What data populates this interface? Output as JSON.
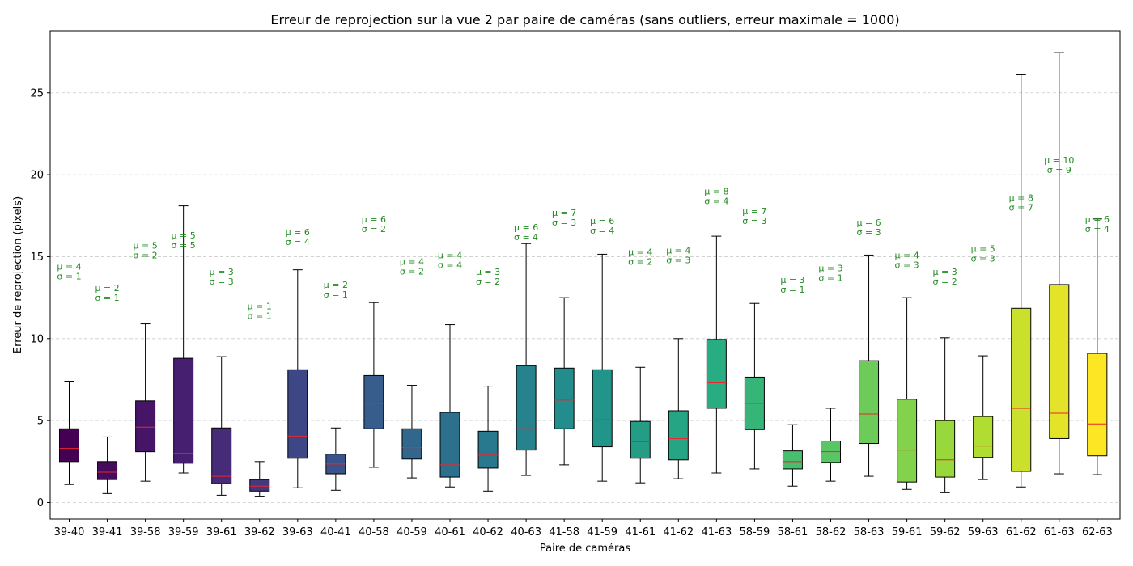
{
  "chart_data": {
    "type": "boxplot",
    "title": "Erreur de reprojection sur la vue 2 par paire de caméras (sans outliers, erreur maximale = 1000)",
    "xlabel": "Paire de caméras",
    "ylabel": "Erreur de reprojection (pixels)",
    "ylim": [
      -1.0,
      28.8
    ],
    "yticks": [
      0,
      5,
      10,
      15,
      20,
      25
    ],
    "grid": "y-dashed",
    "median_color": "#e8262b",
    "annotation_color": "#228b22",
    "colormap": "viridis",
    "categories": [
      "39-40",
      "39-41",
      "39-58",
      "39-59",
      "39-61",
      "39-62",
      "39-63",
      "40-41",
      "40-58",
      "40-59",
      "40-61",
      "40-62",
      "40-63",
      "41-58",
      "41-59",
      "41-61",
      "41-62",
      "41-63",
      "58-59",
      "58-61",
      "58-62",
      "58-63",
      "59-61",
      "59-62",
      "59-63",
      "61-62",
      "61-63",
      "62-63"
    ],
    "boxes": [
      {
        "whislo": 1.1,
        "q1": 2.5,
        "med": 3.3,
        "q3": 4.5,
        "whishi": 7.4,
        "mean_label": "μ = 4",
        "std_label": "σ = 1",
        "label_y": 14.1
      },
      {
        "whislo": 0.55,
        "q1": 1.4,
        "med": 1.85,
        "q3": 2.5,
        "whishi": 4.0,
        "mean_label": "μ = 2",
        "std_label": "σ = 1",
        "label_y": 12.8
      },
      {
        "whislo": 1.3,
        "q1": 3.1,
        "med": 4.6,
        "q3": 6.2,
        "whishi": 10.9,
        "mean_label": "μ = 5",
        "std_label": "σ = 2",
        "label_y": 15.4
      },
      {
        "whislo": 1.8,
        "q1": 2.4,
        "med": 3.0,
        "q3": 8.8,
        "whishi": 18.1,
        "mean_label": "μ = 5",
        "std_label": "σ = 5",
        "label_y": 16.0
      },
      {
        "whislo": 0.45,
        "q1": 1.15,
        "med": 1.6,
        "q3": 4.55,
        "whishi": 8.9,
        "mean_label": "μ = 3",
        "std_label": "σ = 3",
        "label_y": 13.8
      },
      {
        "whislo": 0.35,
        "q1": 0.7,
        "med": 1.0,
        "q3": 1.4,
        "whishi": 2.5,
        "mean_label": "μ = 1",
        "std_label": "σ = 1",
        "label_y": 11.7
      },
      {
        "whislo": 0.9,
        "q1": 2.7,
        "med": 4.05,
        "q3": 8.1,
        "whishi": 14.2,
        "mean_label": "μ = 6",
        "std_label": "σ = 4",
        "label_y": 16.2
      },
      {
        "whislo": 0.75,
        "q1": 1.75,
        "med": 2.35,
        "q3": 2.95,
        "whishi": 4.55,
        "mean_label": "μ = 2",
        "std_label": "σ = 1",
        "label_y": 13.0
      },
      {
        "whislo": 2.15,
        "q1": 4.5,
        "med": 6.05,
        "q3": 7.75,
        "whishi": 12.2,
        "mean_label": "μ = 6",
        "std_label": "σ = 2",
        "label_y": 17.0
      },
      {
        "whislo": 1.5,
        "q1": 2.65,
        "med": 3.35,
        "q3": 4.5,
        "whishi": 7.15,
        "mean_label": "μ = 4",
        "std_label": "σ = 2",
        "label_y": 14.4
      },
      {
        "whislo": 0.95,
        "q1": 1.55,
        "med": 2.3,
        "q3": 5.5,
        "whishi": 10.85,
        "mean_label": "μ = 4",
        "std_label": "σ = 4",
        "label_y": 14.8
      },
      {
        "whislo": 0.7,
        "q1": 2.1,
        "med": 2.9,
        "q3": 4.35,
        "whishi": 7.1,
        "mean_label": "μ = 3",
        "std_label": "σ = 2",
        "label_y": 13.8
      },
      {
        "whislo": 1.65,
        "q1": 3.2,
        "med": 4.5,
        "q3": 8.35,
        "whishi": 15.8,
        "mean_label": "μ = 6",
        "std_label": "σ = 4",
        "label_y": 16.5
      },
      {
        "whislo": 2.3,
        "q1": 4.5,
        "med": 6.25,
        "q3": 8.2,
        "whishi": 12.5,
        "mean_label": "μ = 7",
        "std_label": "σ = 3",
        "label_y": 17.4
      },
      {
        "whislo": 1.3,
        "q1": 3.4,
        "med": 5.05,
        "q3": 8.1,
        "whishi": 15.15,
        "mean_label": "μ = 6",
        "std_label": "σ = 4",
        "label_y": 16.9
      },
      {
        "whislo": 1.2,
        "q1": 2.7,
        "med": 3.7,
        "q3": 4.95,
        "whishi": 8.25,
        "mean_label": "μ = 4",
        "std_label": "σ = 2",
        "label_y": 15.0
      },
      {
        "whislo": 1.45,
        "q1": 2.6,
        "med": 3.9,
        "q3": 5.6,
        "whishi": 10.0,
        "mean_label": "μ = 4",
        "std_label": "σ = 3",
        "label_y": 15.1
      },
      {
        "whislo": 1.8,
        "q1": 5.75,
        "med": 7.3,
        "q3": 9.95,
        "whishi": 16.25,
        "mean_label": "μ = 8",
        "std_label": "σ = 4",
        "label_y": 18.7
      },
      {
        "whislo": 2.05,
        "q1": 4.45,
        "med": 6.05,
        "q3": 7.65,
        "whishi": 12.15,
        "mean_label": "μ = 7",
        "std_label": "σ = 3",
        "label_y": 17.5
      },
      {
        "whislo": 1.0,
        "q1": 2.05,
        "med": 2.5,
        "q3": 3.15,
        "whishi": 4.75,
        "mean_label": "μ = 3",
        "std_label": "σ = 1",
        "label_y": 13.3
      },
      {
        "whislo": 1.3,
        "q1": 2.45,
        "med": 3.1,
        "q3": 3.75,
        "whishi": 5.75,
        "mean_label": "μ = 3",
        "std_label": "σ = 1",
        "label_y": 14.0
      },
      {
        "whislo": 1.6,
        "q1": 3.6,
        "med": 5.4,
        "q3": 8.65,
        "whishi": 15.1,
        "mean_label": "μ = 6",
        "std_label": "σ = 3",
        "label_y": 16.8
      },
      {
        "whislo": 0.8,
        "q1": 1.25,
        "med": 3.2,
        "q3": 6.3,
        "whishi": 12.5,
        "mean_label": "μ = 4",
        "std_label": "σ = 3",
        "label_y": 14.8
      },
      {
        "whislo": 0.6,
        "q1": 1.55,
        "med": 2.6,
        "q3": 5.0,
        "whishi": 10.05,
        "mean_label": "μ = 3",
        "std_label": "σ = 2",
        "label_y": 13.8
      },
      {
        "whislo": 1.4,
        "q1": 2.75,
        "med": 3.45,
        "q3": 5.25,
        "whishi": 8.95,
        "mean_label": "μ = 5",
        "std_label": "σ = 3",
        "label_y": 15.2
      },
      {
        "whislo": 0.95,
        "q1": 1.9,
        "med": 5.75,
        "q3": 11.85,
        "whishi": 26.1,
        "mean_label": "μ = 8",
        "std_label": "σ = 7",
        "label_y": 18.3
      },
      {
        "whislo": 1.75,
        "q1": 3.9,
        "med": 5.45,
        "q3": 13.3,
        "whishi": 27.45,
        "mean_label": "μ = 10",
        "std_label": "σ = 9",
        "label_y": 20.6
      },
      {
        "whislo": 1.7,
        "q1": 2.85,
        "med": 4.8,
        "q3": 9.1,
        "whishi": 17.3,
        "mean_label": "μ = 6",
        "std_label": "σ = 4",
        "label_y": 17.0
      }
    ]
  }
}
